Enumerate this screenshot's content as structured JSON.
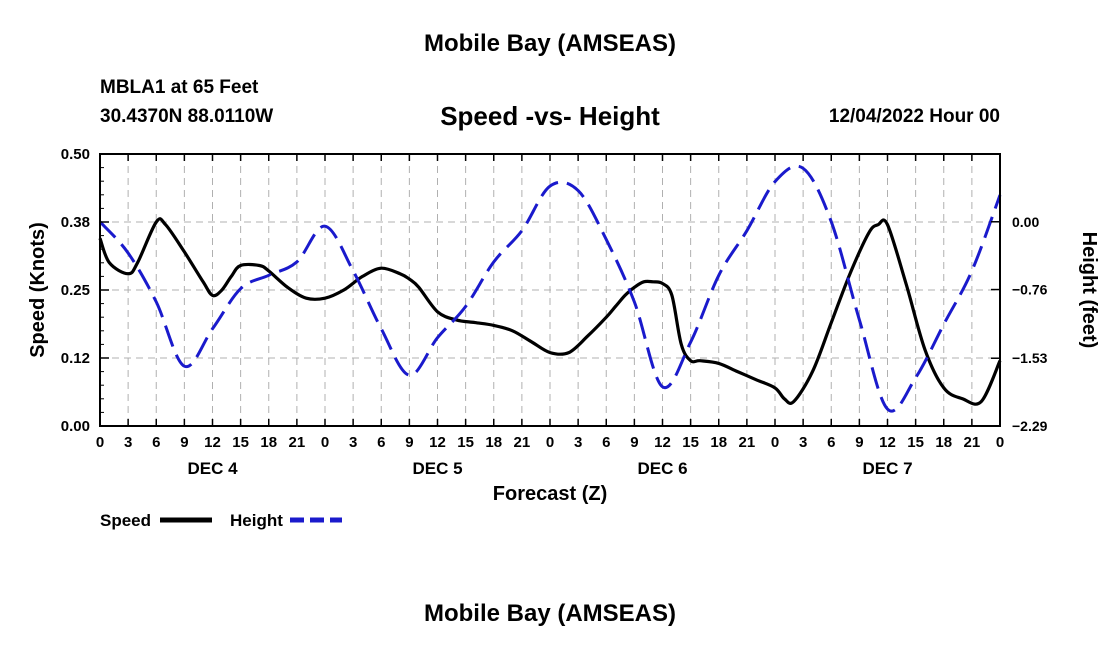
{
  "header": {
    "title": "Mobile Bay (AMSEAS)",
    "station": "MBLA1 at 65 Feet",
    "coords": "30.4370N  88.0110W",
    "datetime": "12/04/2022 Hour 00",
    "bottom_title": "Mobile Bay (AMSEAS)"
  },
  "chart_data": {
    "type": "line",
    "title": "Speed -vs- Height",
    "xlabel": "Forecast (Z)",
    "ylabel": "Speed (Knots)",
    "y2label": "Height (feet)",
    "xlim": [
      0,
      96
    ],
    "ylim": [
      0,
      0.5
    ],
    "y2lim": [
      -2.29,
      0.76
    ],
    "x_ticks": [
      0,
      3,
      6,
      9,
      12,
      15,
      18,
      21,
      24,
      27,
      30,
      33,
      36,
      39,
      42,
      45,
      48,
      51,
      54,
      57,
      60,
      63,
      66,
      69,
      72,
      75,
      78,
      81,
      84,
      87,
      90,
      93,
      96
    ],
    "x_tick_labels": [
      "0",
      "3",
      "6",
      "9",
      "12",
      "15",
      "18",
      "21",
      "0",
      "3",
      "6",
      "9",
      "12",
      "15",
      "18",
      "21",
      "0",
      "3",
      "6",
      "9",
      "12",
      "15",
      "18",
      "21",
      "0",
      "3",
      "6",
      "9",
      "12",
      "15",
      "18",
      "21",
      "0"
    ],
    "day_labels": [
      {
        "x": 12,
        "label": "DEC 4"
      },
      {
        "x": 36,
        "label": "DEC 5"
      },
      {
        "x": 60,
        "label": "DEC 6"
      },
      {
        "x": 84,
        "label": "DEC 7"
      }
    ],
    "y_ticks": [
      0.0,
      0.125,
      0.25,
      0.375,
      0.5
    ],
    "y_tick_labels": [
      "0.00",
      "0.12",
      "0.25",
      "0.38",
      "0.50"
    ],
    "y2_ticks": [
      -2.29,
      -1.53,
      -0.76,
      0.0
    ],
    "y2_tick_labels": [
      "−2.29",
      "−1.53",
      "−0.76",
      "0.00"
    ],
    "grid": true,
    "legend": {
      "placement": "bottom-left",
      "items": [
        {
          "name": "Speed",
          "color": "#000000",
          "style": "solid"
        },
        {
          "name": "Height",
          "color": "#1a1acc",
          "style": "dashed"
        }
      ]
    },
    "series": [
      {
        "name": "Speed",
        "axis": "left",
        "color": "#000000",
        "style": "solid",
        "x": [
          0,
          1,
          3,
          4,
          6,
          7,
          9,
          11,
          12,
          13,
          14,
          15,
          17,
          18,
          20,
          22,
          24,
          26,
          28,
          30,
          32,
          33,
          34,
          36,
          38,
          40,
          42,
          44,
          46,
          48,
          50,
          52,
          54,
          55,
          56,
          57,
          58,
          59,
          60,
          61,
          62,
          63,
          64,
          66,
          68,
          70,
          72,
          73,
          74,
          76,
          78,
          80,
          82,
          83,
          84,
          86,
          88,
          90,
          92,
          94,
          96
        ],
        "values": [
          0.345,
          0.3,
          0.28,
          0.3,
          0.375,
          0.37,
          0.32,
          0.265,
          0.24,
          0.25,
          0.275,
          0.295,
          0.295,
          0.285,
          0.255,
          0.235,
          0.235,
          0.25,
          0.275,
          0.29,
          0.28,
          0.27,
          0.255,
          0.21,
          0.195,
          0.19,
          0.185,
          0.175,
          0.155,
          0.135,
          0.135,
          0.165,
          0.2,
          0.22,
          0.24,
          0.255,
          0.265,
          0.265,
          0.262,
          0.24,
          0.15,
          0.12,
          0.12,
          0.115,
          0.1,
          0.085,
          0.07,
          0.05,
          0.045,
          0.1,
          0.19,
          0.28,
          0.355,
          0.37,
          0.37,
          0.26,
          0.14,
          0.07,
          0.05,
          0.045,
          0.12
        ],
        "values_note": "Trace approximated from chart; resampled smoothly."
      },
      {
        "name": "Height",
        "axis": "right",
        "color": "#1a1acc",
        "style": "dashed",
        "x": [
          0,
          3,
          6,
          9,
          12,
          15,
          18,
          21,
          24,
          27,
          30,
          33,
          36,
          39,
          42,
          45,
          48,
          51,
          54,
          57,
          60,
          63,
          66,
          69,
          72,
          75,
          78,
          81,
          84,
          87,
          90,
          93,
          96
        ],
        "values": [
          0.0,
          -0.35,
          -0.9,
          -1.62,
          -1.2,
          -0.75,
          -0.6,
          -0.45,
          -0.05,
          -0.55,
          -1.2,
          -1.72,
          -1.3,
          -0.95,
          -0.45,
          -0.1,
          0.4,
          0.35,
          -0.2,
          -0.9,
          -1.85,
          -1.35,
          -0.6,
          -0.1,
          0.45,
          0.6,
          0.0,
          -1.1,
          -2.1,
          -1.75,
          -1.15,
          -0.55,
          0.3
        ]
      }
    ]
  }
}
